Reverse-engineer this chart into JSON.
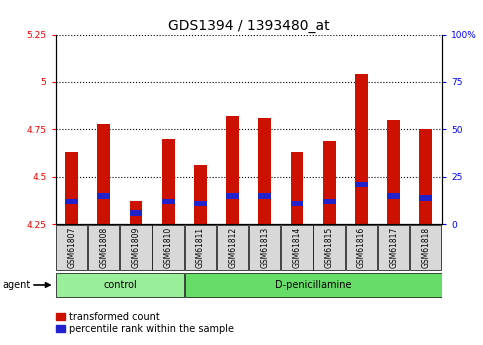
{
  "title": "GDS1394 / 1393480_at",
  "samples": [
    "GSM61807",
    "GSM61808",
    "GSM61809",
    "GSM61810",
    "GSM61811",
    "GSM61812",
    "GSM61813",
    "GSM61814",
    "GSM61815",
    "GSM61816",
    "GSM61817",
    "GSM61818"
  ],
  "groups": [
    "control",
    "control",
    "control",
    "control",
    "D-penicillamine",
    "D-penicillamine",
    "D-penicillamine",
    "D-penicillamine",
    "D-penicillamine",
    "D-penicillamine",
    "D-penicillamine",
    "D-penicillamine"
  ],
  "red_values": [
    4.63,
    4.78,
    4.37,
    4.7,
    4.56,
    4.82,
    4.81,
    4.63,
    4.69,
    5.04,
    4.8,
    4.75
  ],
  "blue_bottom": [
    4.355,
    4.385,
    4.295,
    4.355,
    4.345,
    4.385,
    4.385,
    4.345,
    4.355,
    4.445,
    4.385,
    4.375
  ],
  "blue_top": [
    4.385,
    4.415,
    4.325,
    4.385,
    4.375,
    4.415,
    4.415,
    4.375,
    4.385,
    4.475,
    4.415,
    4.405
  ],
  "ymin": 4.25,
  "ymax": 5.25,
  "yticks": [
    4.25,
    4.5,
    4.75,
    5.0,
    5.25
  ],
  "ytick_labels": [
    "4.25",
    "4.5",
    "4.75",
    "5",
    "5.25"
  ],
  "right_yticks": [
    0,
    25,
    50,
    75,
    100
  ],
  "right_ytick_labels": [
    "0",
    "25",
    "50",
    "75",
    "100%"
  ],
  "bar_width": 0.4,
  "bar_color": "#cc1100",
  "blue_color": "#2222cc",
  "group_colors_control": "#99ee99",
  "group_colors_dpen": "#66dd66",
  "bg_color": "#ffffff",
  "title_fontsize": 10,
  "tick_label_fontsize": 6.5,
  "legend_fontsize": 7
}
